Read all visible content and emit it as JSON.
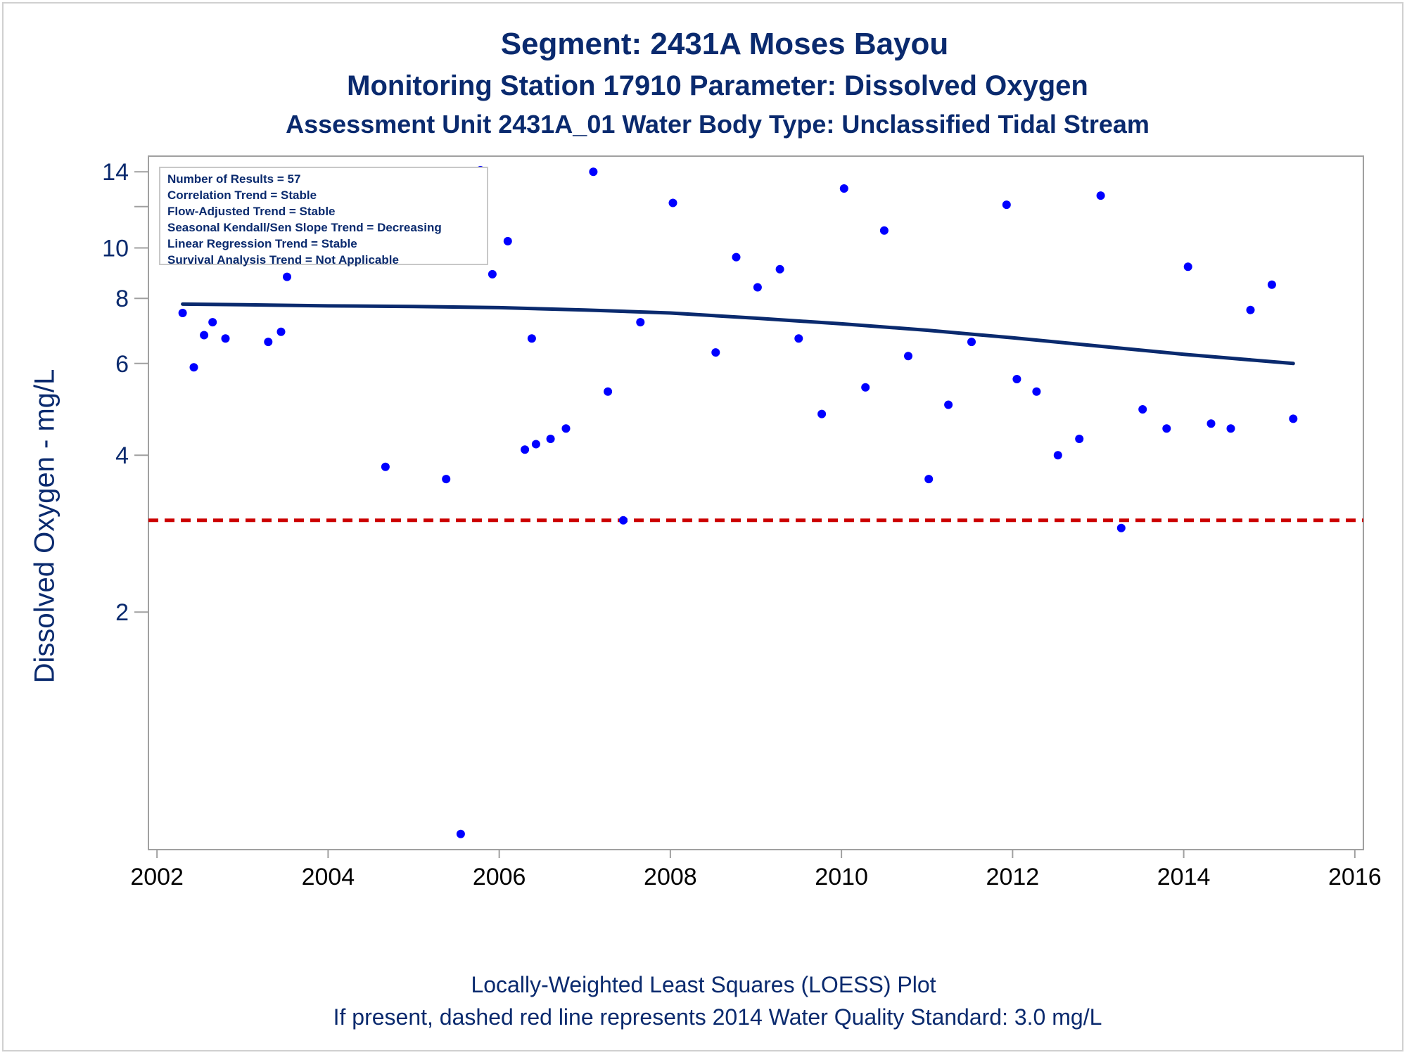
{
  "title": "Segment: 2431A  Moses Bayou",
  "subtitle1": "Monitoring Station 17910 Parameter: Dissolved Oxygen",
  "subtitle2": "Assessment Unit 2431A_01   Water Body Type: Unclassified Tidal Stream",
  "stats": [
    "Number of Results = 57",
    "Correlation Trend = Stable",
    "Flow-Adjusted Trend = Stable",
    "Seasonal Kendall/Sen Slope Trend = Decreasing",
    "Linear Regression Trend = Stable",
    "Survival Analysis Trend = Not Applicable"
  ],
  "footnote1": "Locally-Weighted Least Squares (LOESS) Plot",
  "footnote2": "If present, dashed red line represents 2014 Water Quality Standard: 3.0 mg/L",
  "colors": {
    "text": "#0a2a6e",
    "points": "#0000ff",
    "loess": "#0a2a6e",
    "standard": "#cc0000",
    "frame": "#a0a0a0"
  },
  "chart_data": {
    "type": "scatter",
    "ylabel": "Dissolved Oxygen - mg/L",
    "xlabel": "",
    "yscale": "log",
    "ylim": [
      0.7,
      15
    ],
    "xlim": [
      2001.9,
      2016.1
    ],
    "y_ticks": [
      2,
      4,
      6,
      8,
      10,
      14
    ],
    "y_tick_labels": [
      "2",
      "4",
      "6",
      "8",
      "10",
      "14"
    ],
    "y_minor_ticks": [
      12
    ],
    "x_ticks": [
      2002,
      2004,
      2006,
      2008,
      2010,
      2012,
      2014,
      2016
    ],
    "x_tick_labels": [
      "2002",
      "2004",
      "2006",
      "2008",
      "2010",
      "2012",
      "2014",
      "2016"
    ],
    "grid": false,
    "standard": {
      "value": 3.0,
      "style": "dashed"
    },
    "points": [
      [
        2002.3,
        7.5
      ],
      [
        2002.43,
        5.9
      ],
      [
        2002.55,
        6.8
      ],
      [
        2002.65,
        7.2
      ],
      [
        2002.8,
        6.7
      ],
      [
        2002.97,
        9.5
      ],
      [
        2003.12,
        13.1
      ],
      [
        2003.3,
        6.6
      ],
      [
        2003.45,
        6.9
      ],
      [
        2003.52,
        8.8
      ],
      [
        2004.67,
        3.8
      ],
      [
        2004.85,
        10.8
      ],
      [
        2005.05,
        10.7
      ],
      [
        2005.2,
        9.9
      ],
      [
        2005.38,
        3.6
      ],
      [
        2005.55,
        0.75
      ],
      [
        2005.78,
        14.1
      ],
      [
        2005.92,
        8.9
      ],
      [
        2006.1,
        10.3
      ],
      [
        2006.3,
        4.1
      ],
      [
        2006.38,
        6.7
      ],
      [
        2006.43,
        4.2
      ],
      [
        2006.6,
        4.3
      ],
      [
        2006.78,
        4.5
      ],
      [
        2007.1,
        14.0
      ],
      [
        2007.27,
        5.3
      ],
      [
        2007.45,
        3.0
      ],
      [
        2007.65,
        7.2
      ],
      [
        2008.03,
        12.2
      ],
      [
        2008.53,
        6.3
      ],
      [
        2008.77,
        9.6
      ],
      [
        2009.02,
        8.4
      ],
      [
        2009.28,
        9.1
      ],
      [
        2009.5,
        6.7
      ],
      [
        2009.77,
        4.8
      ],
      [
        2010.03,
        13.0
      ],
      [
        2010.28,
        5.4
      ],
      [
        2010.5,
        10.8
      ],
      [
        2010.78,
        6.2
      ],
      [
        2011.02,
        3.6
      ],
      [
        2011.25,
        5.0
      ],
      [
        2011.52,
        6.6
      ],
      [
        2011.93,
        12.1
      ],
      [
        2012.05,
        5.6
      ],
      [
        2012.28,
        5.3
      ],
      [
        2012.53,
        4.0
      ],
      [
        2012.78,
        4.3
      ],
      [
        2013.03,
        12.6
      ],
      [
        2013.27,
        2.9
      ],
      [
        2013.52,
        4.9
      ],
      [
        2013.8,
        4.5
      ],
      [
        2014.05,
        9.2
      ],
      [
        2014.32,
        4.6
      ],
      [
        2014.55,
        4.5
      ],
      [
        2014.78,
        7.6
      ],
      [
        2015.03,
        8.5
      ],
      [
        2015.28,
        4.7
      ]
    ],
    "loess": [
      [
        2002.3,
        7.8
      ],
      [
        2003.0,
        7.78
      ],
      [
        2004.0,
        7.74
      ],
      [
        2005.0,
        7.72
      ],
      [
        2006.0,
        7.68
      ],
      [
        2007.0,
        7.6
      ],
      [
        2008.0,
        7.5
      ],
      [
        2009.0,
        7.33
      ],
      [
        2010.0,
        7.15
      ],
      [
        2011.0,
        6.95
      ],
      [
        2012.0,
        6.72
      ],
      [
        2013.0,
        6.48
      ],
      [
        2014.0,
        6.25
      ],
      [
        2015.28,
        6.0
      ]
    ]
  }
}
